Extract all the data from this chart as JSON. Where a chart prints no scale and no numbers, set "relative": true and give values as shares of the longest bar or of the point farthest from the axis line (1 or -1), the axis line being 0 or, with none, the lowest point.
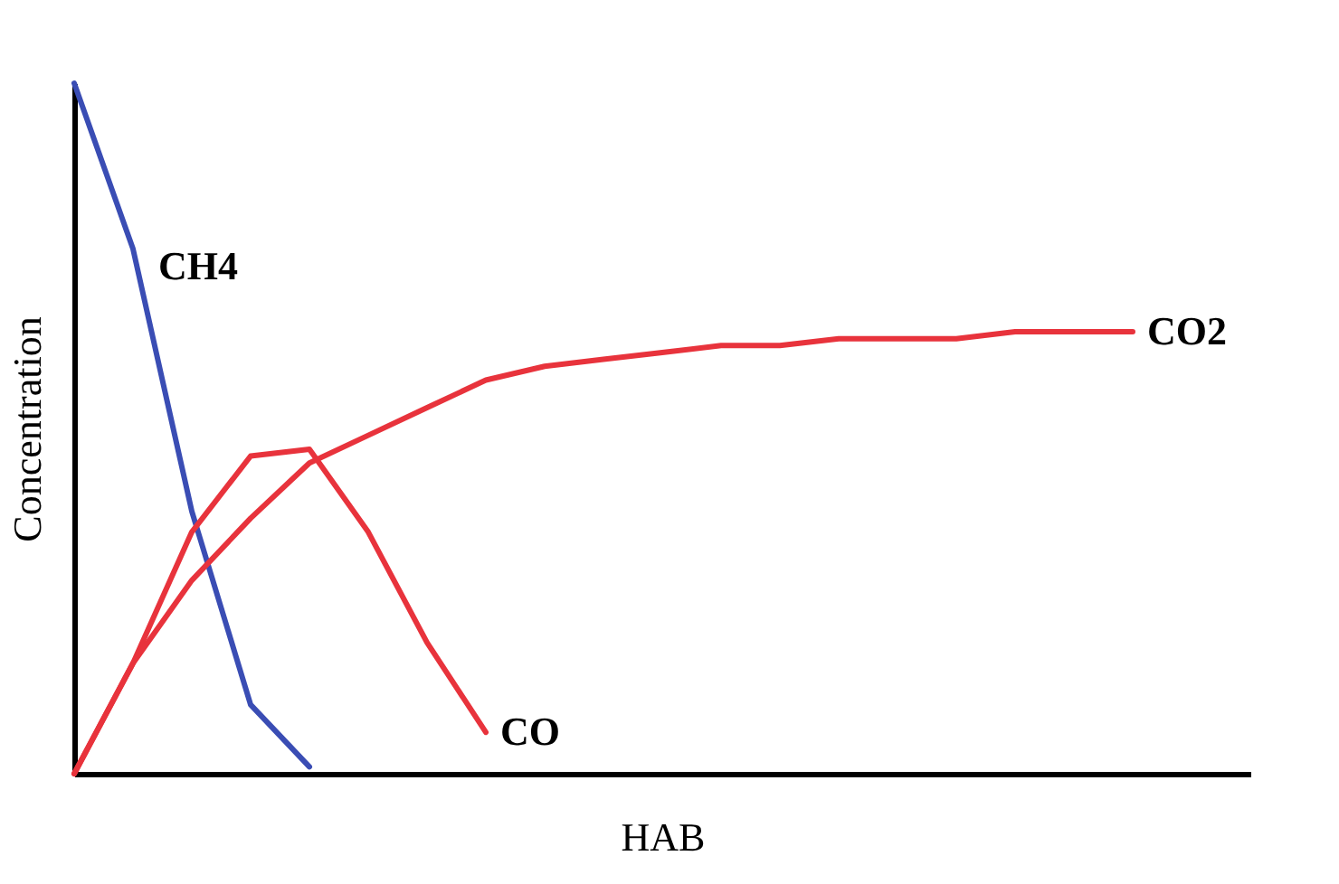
{
  "chart_data": {
    "type": "line",
    "relative": true,
    "xlabel": "HAB",
    "ylabel": "Concentration",
    "tick_labels": false,
    "grid": false,
    "legend": false,
    "marker": "none",
    "line_style": "solid",
    "categories": [
      null,
      null,
      null,
      null,
      null,
      null,
      null,
      null,
      null,
      null,
      null,
      null,
      null,
      null,
      null,
      null,
      null,
      null,
      null,
      null,
      null
    ],
    "series": [
      {
        "name": "CH4",
        "color": "#3a4db4",
        "values": [
          1.0,
          0.76,
          0.38,
          0.1,
          0.01,
          null,
          null,
          null,
          null,
          null,
          null,
          null,
          null,
          null,
          null,
          null,
          null,
          null,
          null,
          null,
          null
        ]
      },
      {
        "name": "CO",
        "color": "#e8333c",
        "values": [
          0,
          0.16,
          0.35,
          0.46,
          0.47,
          0.35,
          0.19,
          0.06,
          null,
          null,
          null,
          null,
          null,
          null,
          null,
          null,
          null,
          null,
          null,
          null,
          null
        ]
      },
      {
        "name": "CO2",
        "color": "#e8333c",
        "values": [
          0,
          0.16,
          0.28,
          0.37,
          0.45,
          0.49,
          0.53,
          0.57,
          0.59,
          0.6,
          0.61,
          0.62,
          0.62,
          0.63,
          0.63,
          0.63,
          0.64,
          0.64,
          0.64,
          null,
          null
        ]
      }
    ]
  }
}
